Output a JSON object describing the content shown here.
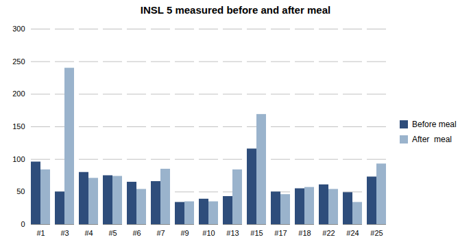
{
  "chart_data": {
    "type": "bar",
    "title": "INSL 5 measured before and after meal",
    "categories": [
      "#1",
      "#3",
      "#4",
      "#5",
      "#6",
      "#7",
      "#9",
      "#10",
      "#13",
      "#15",
      "#17",
      "#18",
      "#22",
      "#24",
      "#25"
    ],
    "series": [
      {
        "name": "Before meal",
        "color": "#2E4D7B",
        "values": [
          96,
          50,
          80,
          75,
          65,
          66,
          34,
          39,
          43,
          116,
          50,
          55,
          61,
          49,
          73
        ]
      },
      {
        "name": "After  meal",
        "color": "#9AB3CC",
        "values": [
          84,
          240,
          71,
          74,
          54,
          85,
          35,
          35,
          84,
          169,
          46,
          57,
          54,
          34,
          93
        ]
      }
    ],
    "ylim": [
      0,
      300
    ],
    "yticks": [
      0,
      50,
      100,
      150,
      200,
      250,
      300
    ],
    "grid": true,
    "legend": "right"
  }
}
